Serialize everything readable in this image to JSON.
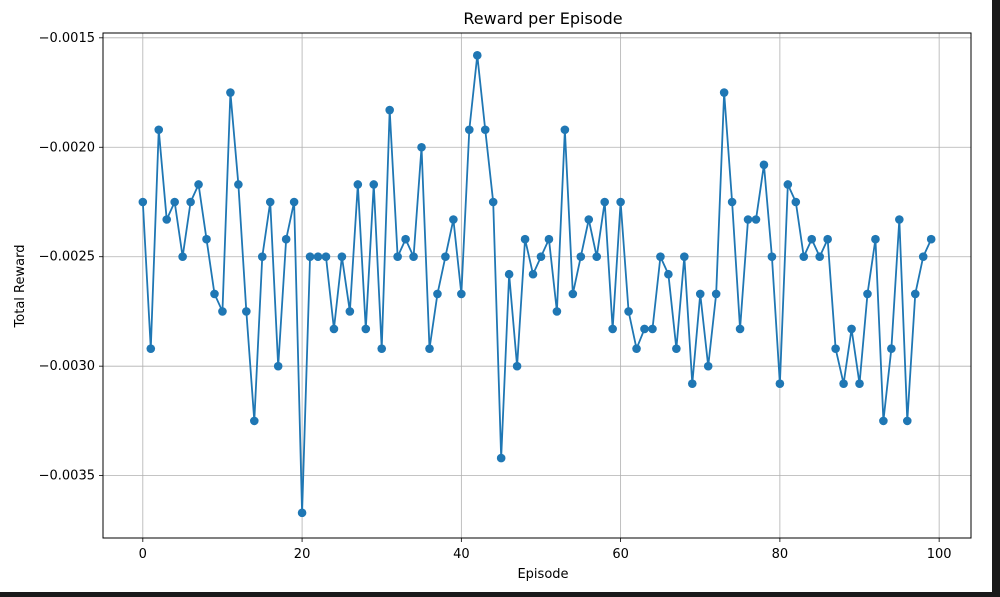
{
  "chart_data": {
    "type": "line",
    "title": "Reward per Episode",
    "xlabel": "Episode",
    "ylabel": "Total Reward",
    "xlim": [
      -5,
      104
    ],
    "ylim": [
      -0.003785,
      -0.001478
    ],
    "xticks": [
      0,
      20,
      40,
      60,
      80,
      100
    ],
    "xtick_labels": [
      "0",
      "20",
      "40",
      "60",
      "80",
      "100"
    ],
    "yticks": [
      -0.0015,
      -0.002,
      -0.0025,
      -0.003,
      -0.0035
    ],
    "ytick_labels": [
      "−0.0015",
      "−0.0020",
      "−0.0025",
      "−0.0030",
      "−0.0035"
    ],
    "grid": true,
    "marker": "circle",
    "color": "#1f77b4",
    "series": [
      {
        "x": [
          0,
          1,
          2,
          3,
          4,
          5,
          6,
          7,
          8,
          9,
          10,
          11,
          12,
          13,
          14,
          15,
          16,
          17,
          18,
          19,
          20,
          21,
          22,
          23,
          24,
          25,
          26,
          27,
          28,
          29,
          30,
          31,
          32,
          33,
          34,
          35,
          36,
          37,
          38,
          39,
          40,
          41,
          42,
          43,
          44,
          45,
          46,
          47,
          48,
          49,
          50,
          51,
          52,
          53,
          54,
          55,
          56,
          57,
          58,
          59,
          60,
          61,
          62,
          63,
          64,
          65,
          66,
          67,
          68,
          69,
          70,
          71,
          72,
          73,
          74,
          75,
          76,
          77,
          78,
          79,
          80,
          81,
          82,
          83,
          84,
          85,
          86,
          87,
          88,
          89,
          90,
          91,
          92,
          93,
          94,
          95,
          96,
          97,
          98,
          99
        ],
        "values": [
          -0.00225,
          -0.00292,
          -0.00192,
          -0.00233,
          -0.00225,
          -0.0025,
          -0.00225,
          -0.00217,
          -0.00242,
          -0.00267,
          -0.00275,
          -0.00175,
          -0.00217,
          -0.00275,
          -0.00325,
          -0.0025,
          -0.00225,
          -0.003,
          -0.00242,
          -0.00225,
          -0.00367,
          -0.0025,
          -0.0025,
          -0.0025,
          -0.00283,
          -0.0025,
          -0.00275,
          -0.00217,
          -0.00283,
          -0.00217,
          -0.00292,
          -0.00183,
          -0.0025,
          -0.00242,
          -0.0025,
          -0.002,
          -0.00292,
          -0.00267,
          -0.0025,
          -0.00233,
          -0.00267,
          -0.00192,
          -0.00158,
          -0.00192,
          -0.00225,
          -0.00342,
          -0.00258,
          -0.003,
          -0.00242,
          -0.00258,
          -0.0025,
          -0.00242,
          -0.00275,
          -0.00192,
          -0.00267,
          -0.0025,
          -0.00233,
          -0.0025,
          -0.00225,
          -0.00283,
          -0.00225,
          -0.00275,
          -0.00292,
          -0.00283,
          -0.00283,
          -0.0025,
          -0.00258,
          -0.00292,
          -0.0025,
          -0.00308,
          -0.00267,
          -0.003,
          -0.00267,
          -0.00175,
          -0.00225,
          -0.00283,
          -0.00233,
          -0.00233,
          -0.00208,
          -0.0025,
          -0.00308,
          -0.00217,
          -0.00225,
          -0.0025,
          -0.00242,
          -0.0025,
          -0.00242,
          -0.00292,
          -0.00308,
          -0.00283,
          -0.00308,
          -0.00267,
          -0.00242,
          -0.00325,
          -0.00292,
          -0.00233,
          -0.00325,
          -0.00267,
          -0.0025,
          -0.00242
        ]
      }
    ]
  }
}
